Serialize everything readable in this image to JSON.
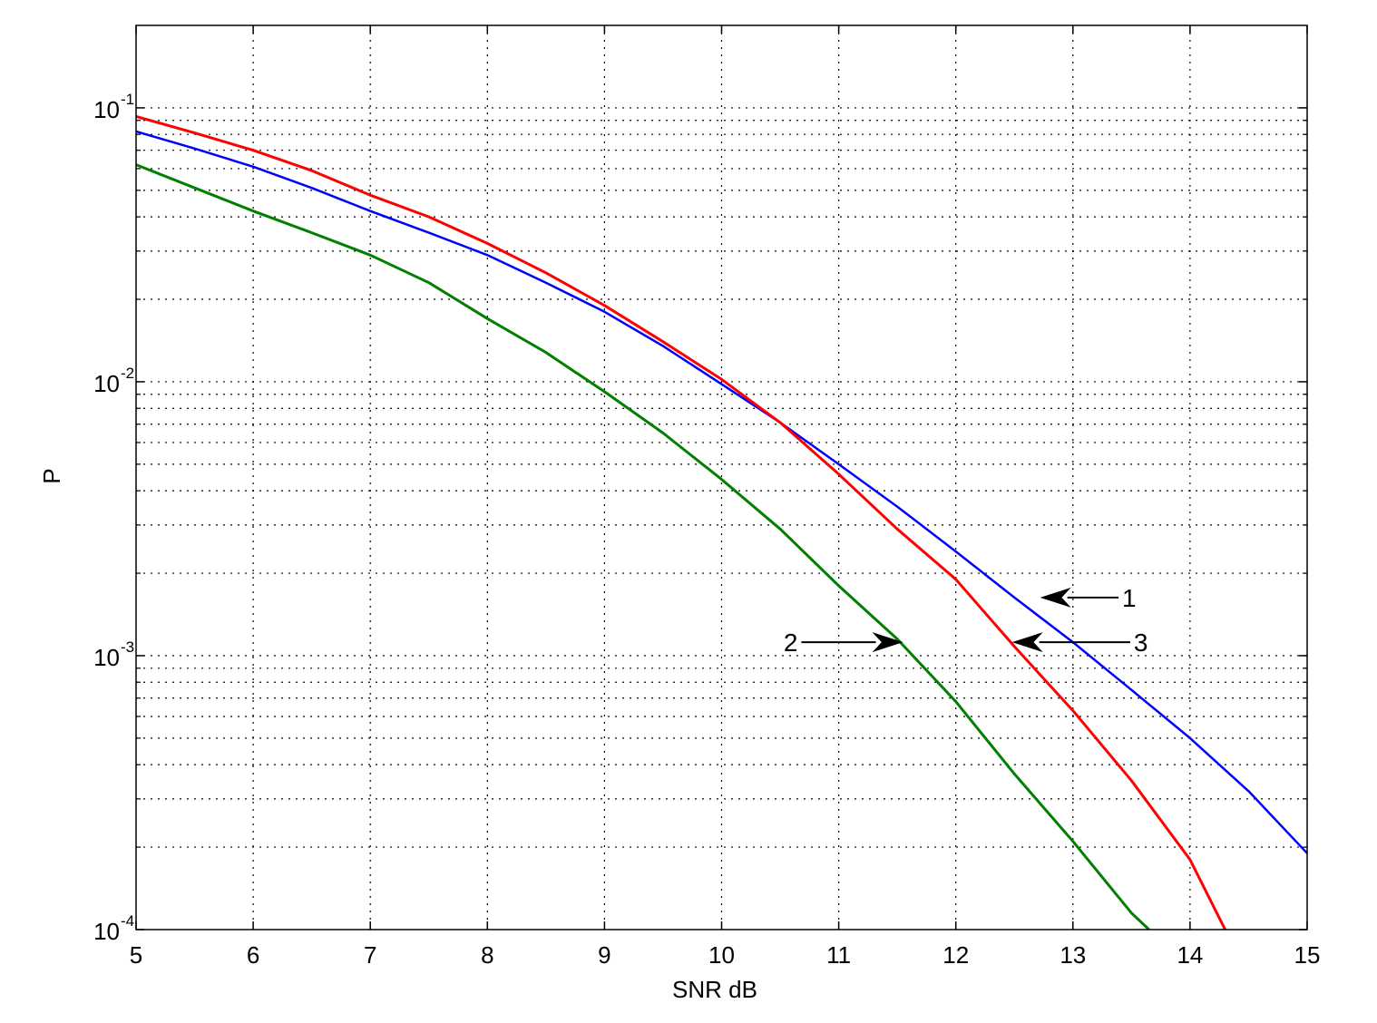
{
  "chart_data": {
    "type": "line",
    "title": "",
    "xlabel": "SNR dB",
    "ylabel": "P",
    "xscale": "linear",
    "yscale": "log",
    "xlim": [
      5,
      15
    ],
    "ylim": [
      0.0001,
      0.2
    ],
    "grid": true,
    "x_ticks": [
      5,
      6,
      7,
      8,
      9,
      10,
      11,
      12,
      13,
      14,
      15
    ],
    "y_ticks": [
      {
        "base": "10",
        "exp": "-1",
        "value": 0.1
      },
      {
        "base": "10",
        "exp": "-2",
        "value": 0.01
      },
      {
        "base": "10",
        "exp": "-3",
        "value": 0.001
      },
      {
        "base": "10",
        "exp": "-4",
        "value": 0.0001
      }
    ],
    "series": [
      {
        "color": "#0000ff",
        "line_width": 2.5,
        "x": [
          5,
          5.5,
          6,
          6.5,
          7,
          7.5,
          8,
          8.5,
          9,
          9.5,
          10,
          10.5,
          11,
          11.5,
          12,
          12.5,
          13,
          13.5,
          14,
          14.5,
          15
        ],
        "y": [
          0.082,
          0.071,
          0.061,
          0.051,
          0.042,
          0.035,
          0.029,
          0.023,
          0.018,
          0.0135,
          0.0098,
          0.0071,
          0.005,
          0.0035,
          0.0024,
          0.00163,
          0.00112,
          0.00075,
          0.0005,
          0.00032,
          0.00019
        ]
      },
      {
        "color": "#ff0000",
        "line_width": 3,
        "x": [
          5,
          5.5,
          6,
          6.5,
          7,
          7.5,
          8,
          8.5,
          9,
          9.5,
          10,
          10.5,
          11,
          11.5,
          12,
          12.5,
          13,
          13.5,
          14,
          14.3
        ],
        "y": [
          0.093,
          0.081,
          0.07,
          0.059,
          0.048,
          0.04,
          0.032,
          0.025,
          0.019,
          0.014,
          0.0102,
          0.0071,
          0.0046,
          0.0029,
          0.0019,
          0.00108,
          0.00063,
          0.00035,
          0.00018,
          0.0001
        ]
      },
      {
        "color": "#007f00",
        "line_width": 3,
        "x": [
          5,
          5.5,
          6,
          6.5,
          7,
          7.5,
          8,
          8.5,
          9,
          9.5,
          10,
          10.5,
          11,
          11.5,
          12,
          12.5,
          13,
          13.5,
          13.65
        ],
        "y": [
          0.062,
          0.051,
          0.042,
          0.035,
          0.029,
          0.023,
          0.017,
          0.0128,
          0.0092,
          0.0065,
          0.0044,
          0.0029,
          0.0018,
          0.00115,
          0.00068,
          0.00037,
          0.00021,
          0.000115,
          0.0001
        ]
      }
    ],
    "annotations": [
      {
        "label": "1",
        "arrow_tip": [
          12.72,
          0.00163
        ],
        "text_pos": [
          13.42,
          0.00163
        ]
      },
      {
        "label": "3",
        "arrow_tip": [
          12.48,
          0.00112
        ],
        "text_pos": [
          13.52,
          0.00112
        ]
      },
      {
        "label": "2",
        "arrow_tip": [
          11.55,
          0.00112
        ],
        "text_pos": [
          10.65,
          0.00112
        ]
      }
    ]
  }
}
